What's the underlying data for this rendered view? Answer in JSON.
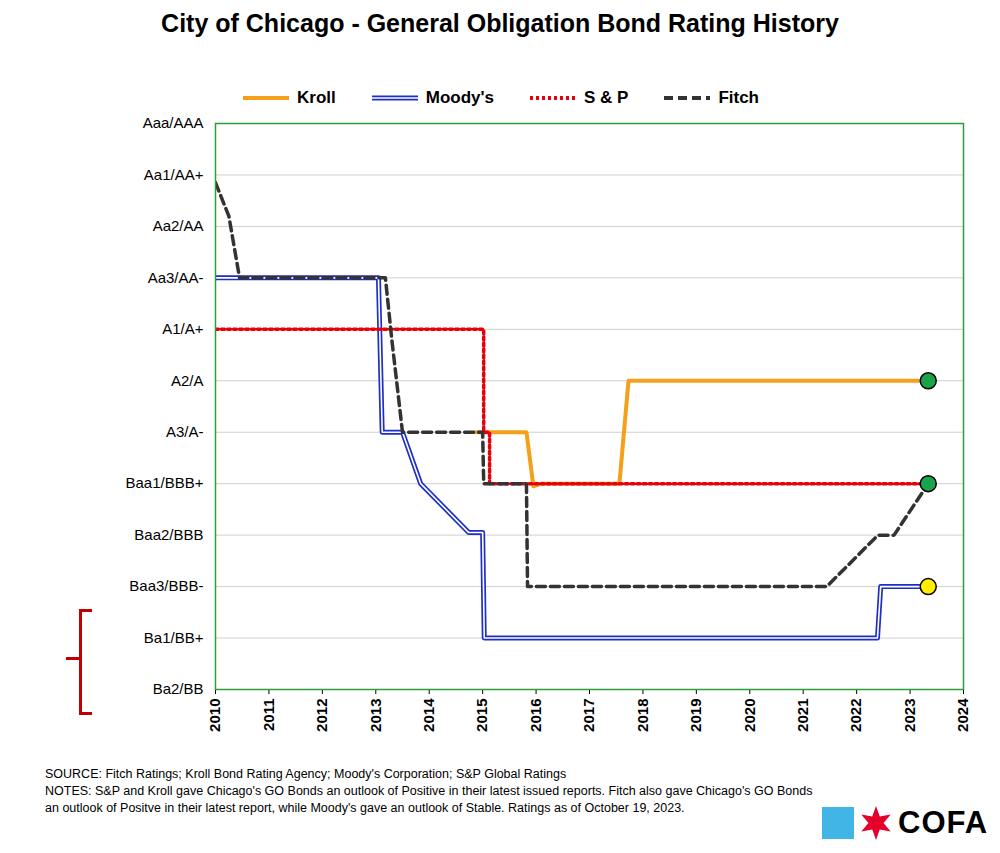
{
  "chart_data": {
    "type": "line",
    "title": "City of Chicago - General Obligation Bond Rating History",
    "xlim": [
      2010,
      2024
    ],
    "xticks": [
      2010,
      2011,
      2012,
      2013,
      2014,
      2015,
      2016,
      2017,
      2018,
      2019,
      2020,
      2021,
      2022,
      2023,
      2024
    ],
    "ylim": [
      0,
      11
    ],
    "yticks": [
      {
        "value": 0,
        "label": "Ba2/BB"
      },
      {
        "value": 1,
        "label": "Ba1/BB+"
      },
      {
        "value": 2,
        "label": "Baa3/BBB-"
      },
      {
        "value": 3,
        "label": "Baa2/BBB"
      },
      {
        "value": 4,
        "label": "Baa1/BBB+"
      },
      {
        "value": 5,
        "label": "A3/A-"
      },
      {
        "value": 6,
        "label": "A2/A"
      },
      {
        "value": 7,
        "label": "A1/A+"
      },
      {
        "value": 8,
        "label": "Aa3/AA-"
      },
      {
        "value": 9,
        "label": "Aa2/AA"
      },
      {
        "value": 10,
        "label": "Aa1/AA+"
      },
      {
        "value": 11,
        "label": "Aaa/AAA"
      }
    ],
    "grid": true,
    "legend": "top",
    "series": [
      {
        "name": "Kroll",
        "color": "#f5a01a",
        "line_style": "solid",
        "x": [
          2014.87,
          2015.82,
          2015.95,
          2016.1,
          2017.56,
          2017.73,
          2023.34
        ],
        "values": [
          5,
          5,
          3.95,
          4,
          4,
          6,
          6
        ]
      },
      {
        "name": "Moody's",
        "color": "#1f2fc4",
        "line_style": "double",
        "x": [
          2010,
          2013.05,
          2013.12,
          2013.5,
          2013.84,
          2014.74,
          2015.0,
          2015.03,
          2022.39,
          2022.45,
          2023.34
        ],
        "values": [
          8,
          8,
          5,
          5,
          4,
          3.05,
          3.05,
          1,
          1,
          2,
          2
        ]
      },
      {
        "name": "S & P",
        "color": "#e8000b",
        "line_style": "dotted",
        "x": [
          2010,
          2015.02,
          2015.02,
          2015.13,
          2015.13,
          2023.34
        ],
        "values": [
          7,
          7,
          5,
          5,
          4,
          4
        ]
      },
      {
        "name": "Fitch",
        "color": "#333333",
        "line_style": "dashed",
        "x": [
          2010,
          2010.25,
          2010.45,
          2013.18,
          2013.3,
          2013.5,
          2015.0,
          2015.02,
          2015.82,
          2015.84,
          2021.44,
          2022.4,
          2022.7,
          2023.34
        ],
        "values": [
          9.85,
          9.2,
          8,
          8,
          6.8,
          5,
          5,
          4,
          4,
          2,
          2,
          3,
          3,
          4
        ]
      }
    ],
    "end_points": {
      "x": [
        2023.34,
        2023.34,
        2023.34
      ],
      "values": [
        6,
        4,
        2
      ],
      "colors": [
        "#1aa34a",
        "#1aa34a",
        "#ffee00"
      ]
    },
    "source": "SOURCE: Fitch Ratings; Kroll Bond Rating Agency; Moody's Corporation; S&P Global Ratings",
    "notes": "NOTES: S&P and Kroll gave Chicago's GO Bonds an outlook of Positive in their latest issued reports. Fitch also gave Chicago's GO Bonds an outlook of Positve in their latest report, while Moody's gave an outlook of Stable. Ratings as of October 19, 2023.",
    "logo": "COFA"
  }
}
